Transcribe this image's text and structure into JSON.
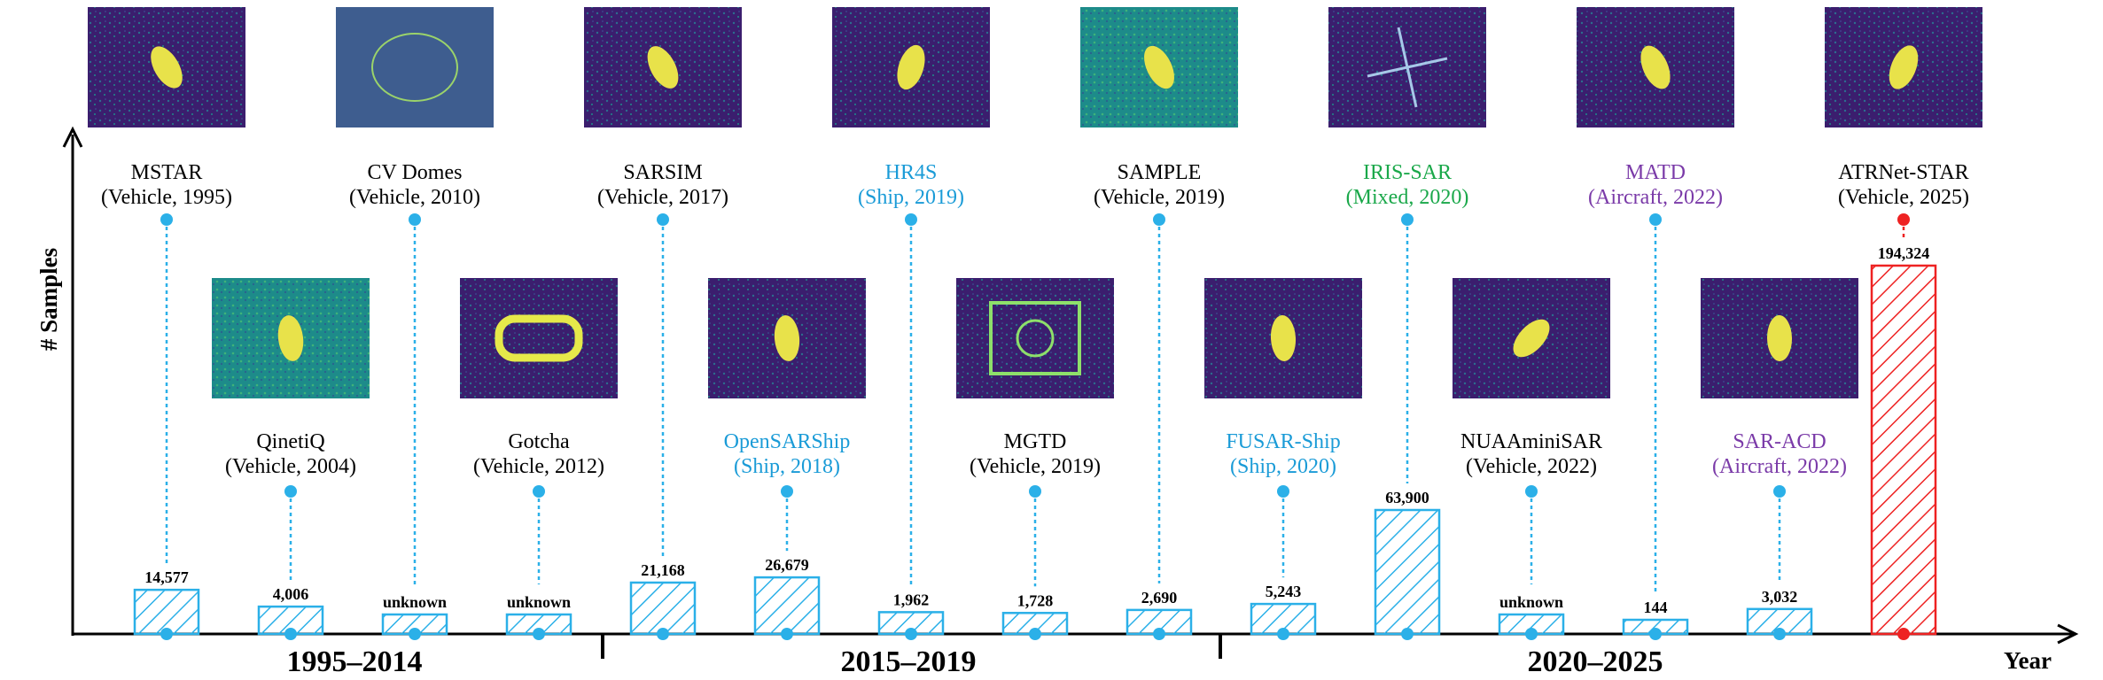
{
  "chart_data": {
    "type": "bar",
    "xlabel": "Year",
    "ylabel": "# Samples",
    "periods": [
      "1995–2014",
      "2015–2019",
      "2020–2025"
    ],
    "colors": {
      "bar": "#2bb0e8",
      "highlight": "#ee2222",
      "Vehicle": "#000000",
      "Ship": "#1a9bd7",
      "Mixed": "#1aa84a",
      "Aircraft": "#7a3aa8"
    },
    "datasets": [
      {
        "name": "MSTAR",
        "type": "Vehicle",
        "year": 1995,
        "value": 14577,
        "label": "14,577",
        "category": "(Vehicle, 1995)"
      },
      {
        "name": "QinetiQ",
        "type": "Vehicle",
        "year": 2004,
        "value": 4006,
        "label": "4,006",
        "category": "(Vehicle, 2004)"
      },
      {
        "name": "CV Domes",
        "type": "Vehicle",
        "year": 2010,
        "value": null,
        "label": "unknown",
        "category": "(Vehicle, 2010)"
      },
      {
        "name": "Gotcha",
        "type": "Vehicle",
        "year": 2012,
        "value": null,
        "label": "unknown",
        "category": "(Vehicle, 2012)"
      },
      {
        "name": "SARSIM",
        "type": "Vehicle",
        "year": 2017,
        "value": 21168,
        "label": "21,168",
        "category": "(Vehicle, 2017)"
      },
      {
        "name": "OpenSARShip",
        "type": "Ship",
        "year": 2018,
        "value": 26679,
        "label": "26,679",
        "category": "(Ship, 2018)"
      },
      {
        "name": "HR4S",
        "type": "Ship",
        "year": 2019,
        "value": 1962,
        "label": "1,962",
        "category": "(Ship, 2019)"
      },
      {
        "name": "MGTD",
        "type": "Vehicle",
        "year": 2019,
        "value": 1728,
        "label": "1,728",
        "category": "(Vehicle, 2019)"
      },
      {
        "name": "SAMPLE",
        "type": "Vehicle",
        "year": 2019,
        "value": 2690,
        "label": "2,690",
        "category": "(Vehicle, 2019)"
      },
      {
        "name": "FUSAR-Ship",
        "type": "Ship",
        "year": 2020,
        "value": 5243,
        "label": "5,243",
        "category": "(Ship, 2020)"
      },
      {
        "name": "IRIS-SAR",
        "type": "Mixed",
        "year": 2020,
        "value": 63900,
        "label": "63,900",
        "category": "(Mixed, 2020)"
      },
      {
        "name": "NUAAminiSAR",
        "type": "Vehicle",
        "year": 2022,
        "value": null,
        "label": "unknown",
        "category": "(Vehicle, 2022)"
      },
      {
        "name": "MATD",
        "type": "Aircraft",
        "year": 2022,
        "value": 144,
        "label": "144",
        "category": "(Aircraft, 2022)"
      },
      {
        "name": "SAR-ACD",
        "type": "Aircraft",
        "year": 2022,
        "value": 3032,
        "label": "3,032",
        "category": "(Aircraft, 2022)"
      },
      {
        "name": "ATRNet-STAR",
        "type": "Vehicle",
        "year": 2025,
        "value": 194324,
        "label": "194,324",
        "category": "(Vehicle, 2025)",
        "highlight": true
      }
    ]
  }
}
